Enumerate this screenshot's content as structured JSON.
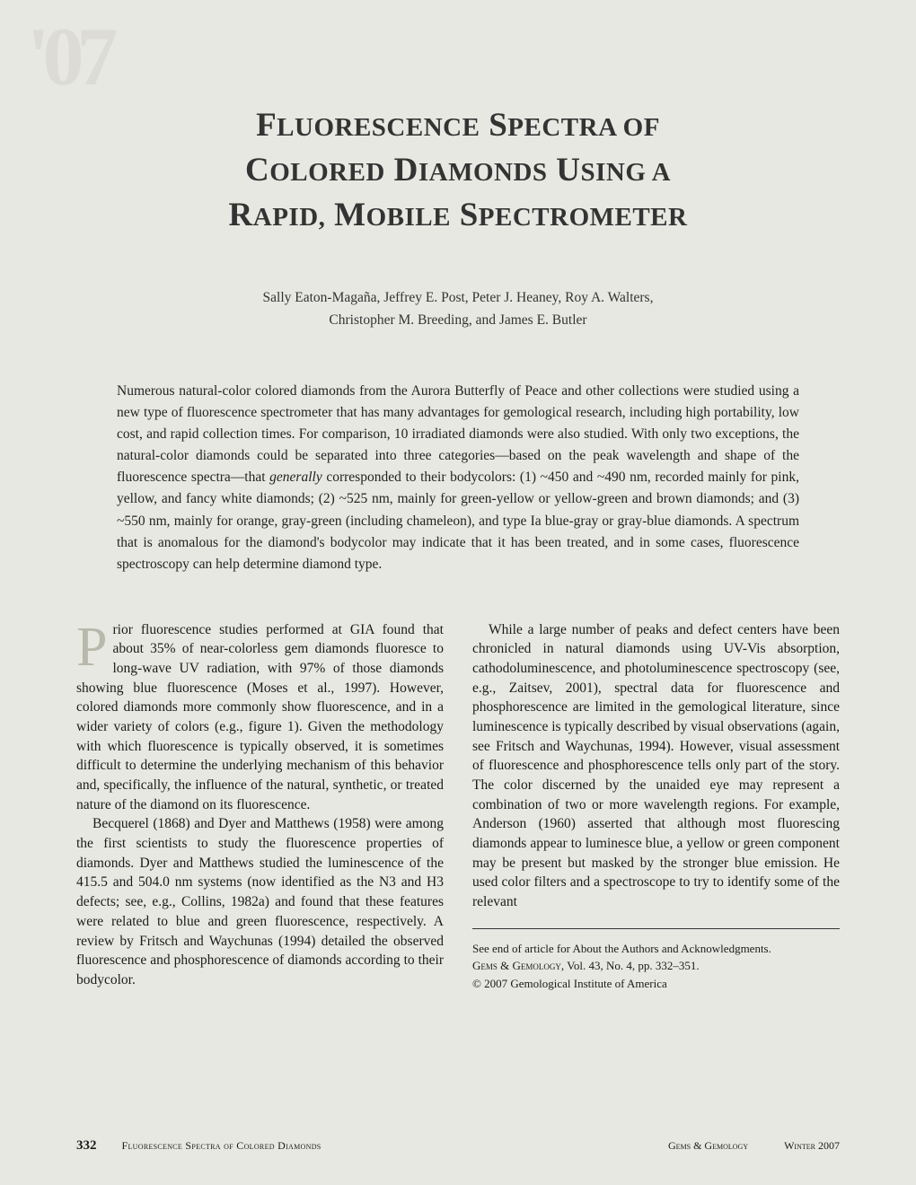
{
  "watermark": "'07",
  "title": {
    "line1_caps": "F",
    "line1_rest": "LUORESCENCE",
    "line1b_caps": "S",
    "line1b_rest": "PECTRA OF",
    "line2_caps": "C",
    "line2_rest": "OLORED",
    "line2b_caps": "D",
    "line2b_rest": "IAMONDS",
    "line2c_caps": "U",
    "line2c_rest": "SING A",
    "line3_caps": "R",
    "line3_rest": "APID,",
    "line3b_caps": "M",
    "line3b_rest": "OBILE",
    "line3c_caps": "S",
    "line3c_rest": "PECTROMETER"
  },
  "authors": {
    "line1": "Sally Eaton-Magaña, Jeffrey E. Post, Peter J. Heaney, Roy A. Walters,",
    "line2": "Christopher M. Breeding, and James E. Butler"
  },
  "abstract": {
    "text_a": "Numerous natural-color colored diamonds from the Aurora Butterfly of Peace and other collections were studied using a new type of fluorescence spectrometer that has many advantages for gemological research, including high portability, low cost, and rapid collection times. For comparison, 10 irradiated diamonds were also studied. With only two exceptions, the natural-color diamonds could be separated into three categories—based on the peak wavelength and shape of the fluorescence spectra—that ",
    "text_ital": "generally",
    "text_b": " corresponded to their bodycolors: (1) ~450 and ~490 nm, recorded mainly for pink, yellow, and fancy white diamonds; (2) ~525 nm, mainly for green-yellow or yellow-green and brown diamonds; and (3) ~550 nm, mainly for orange, gray-green (including chameleon), and type Ia blue-gray or gray-blue diamonds. A spectrum that is anomalous for the diamond's bodycolor may indicate that it has been treated, and in some cases, fluorescence spectroscopy can help determine diamond type."
  },
  "left_col": {
    "p1": "rior fluorescence studies performed at GIA found that about 35% of near-colorless gem diamonds fluoresce to long-wave UV radiation, with 97% of those diamonds showing blue fluorescence (Moses et al., 1997). However, colored diamonds more commonly show fluorescence, and in a wider variety of colors (e.g., figure 1). Given the methodology with which fluorescence is typically observed, it is sometimes difficult to determine the underlying mechanism of this behavior and, specifically, the influence of the natural, synthetic, or treated nature of the diamond on its fluorescence.",
    "p2": "Becquerel (1868) and Dyer and Matthews (1958) were among the first scientists to study the fluorescence properties of diamonds. Dyer and Matthews studied the luminescence of the 415.5 and 504.0 nm systems (now identified as the N3 and H3 defects; see, e.g., Collins, 1982a) and found that these features were related to blue and green fluorescence, respectively. A review by Fritsch and Waychunas (1994) detailed the observed fluorescence and phosphorescence of diamonds according to their bodycolor."
  },
  "right_col": {
    "p1": "While a large number of peaks and defect centers have been chronicled in natural diamonds using UV-Vis absorption, cathodoluminescence, and photoluminescence spectroscopy (see, e.g., Zaitsev, 2001), spectral data for fluorescence and phosphorescence are limited in the gemological literature, since luminescence is typically described by visual observations (again, see Fritsch and Waychunas, 1994). However, visual assessment of fluorescence and phosphorescence tells only part of the story. The color discerned by the unaided eye may represent a combination of two or more wavelength regions. For example, Anderson (1960) asserted that although most fluorescing diamonds appear to luminesce blue, a yellow or green component may be present but masked by the stronger blue emission. He used color filters and a spectroscope to try to identify some of the relevant"
  },
  "note": {
    "l1": "See end of article for About the Authors and Acknowledgments.",
    "l2a": "Gems & Gemology",
    "l2b": ", Vol. 43, No. 4, pp. 332–351.",
    "l3": "© 2007 Gemological Institute of America"
  },
  "footer": {
    "page": "332",
    "title": "Fluorescence Spectra of Colored Diamonds",
    "journal": "Gems & Gemology",
    "season": "Winter 2007"
  },
  "style": {
    "page_bg": "#e8e8e3",
    "text_color": "#1a1a1a",
    "dropcap_color": "#b8b8ab",
    "watermark_color": "#dcdcd5",
    "title_fontsize": 37,
    "body_fontsize": 15.5,
    "note_fontsize": 13,
    "footer_fontsize": 12
  }
}
